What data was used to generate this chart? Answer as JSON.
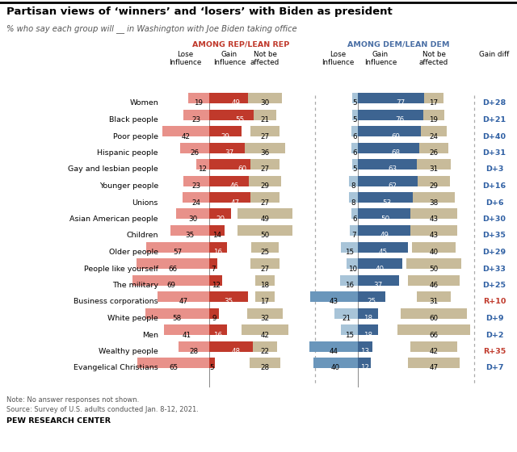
{
  "title": "Partisan views of ‘winners’ and ‘losers’ with Biden as president",
  "subtitle": "% who say each group will __ in Washington with Joe Biden taking office",
  "note": "Note: No answer responses not shown.",
  "source": "Source: Survey of U.S. adults conducted Jan. 8-12, 2021.",
  "credit": "PEW RESEARCH CENTER",
  "rep_label": "AMONG REP/LEAN REP",
  "dem_label": "AMONG DEM/LEAN DEM",
  "gain_diff_label": "Gain diff",
  "categories": [
    "Women",
    "Black people",
    "Poor people",
    "Hispanic people",
    "Gay and lesbian people",
    "Younger people",
    "Unions",
    "Asian American people",
    "Children",
    "Older people",
    "People like yourself",
    "The military",
    "Business corporations",
    "White people",
    "Men",
    "Wealthy people",
    "Evangelical Christians"
  ],
  "rep_lose": [
    19,
    23,
    42,
    26,
    12,
    23,
    24,
    30,
    35,
    57,
    66,
    69,
    47,
    58,
    41,
    28,
    65
  ],
  "rep_gain": [
    49,
    55,
    29,
    37,
    60,
    46,
    47,
    20,
    14,
    16,
    7,
    12,
    35,
    9,
    16,
    48,
    5
  ],
  "rep_notaff": [
    30,
    21,
    27,
    36,
    27,
    29,
    27,
    49,
    50,
    25,
    27,
    18,
    17,
    32,
    42,
    22,
    28
  ],
  "dem_lose": [
    5,
    5,
    6,
    6,
    5,
    8,
    8,
    6,
    7,
    15,
    10,
    16,
    43,
    21,
    15,
    44,
    40
  ],
  "dem_gain": [
    77,
    76,
    69,
    68,
    63,
    62,
    53,
    50,
    49,
    45,
    40,
    37,
    25,
    18,
    18,
    13,
    12
  ],
  "dem_notaff": [
    17,
    19,
    24,
    26,
    31,
    29,
    38,
    43,
    43,
    40,
    50,
    46,
    31,
    60,
    66,
    42,
    47
  ],
  "gain_diff": [
    "D+28",
    "D+21",
    "D+40",
    "D+31",
    "D+3",
    "D+16",
    "D+6",
    "D+30",
    "D+35",
    "D+29",
    "D+33",
    "D+25",
    "R+10",
    "D+9",
    "D+2",
    "R+35",
    "D+7"
  ],
  "rep_lose_color": "#e8918a",
  "rep_gain_color": "#c0392b",
  "rep_notaff_color": "#c8bb9a",
  "dem_lose_color_light": "#a8c4d8",
  "dem_lose_color_dark": "#6a96bb",
  "dem_gain_color": "#3d6491",
  "dem_notaff_color": "#c8bb9a",
  "gain_diff_blue": "#2e5fa3",
  "gain_diff_red": "#c0392b",
  "rep_color": "#c0392b",
  "dem_color": "#4a6fa5",
  "title_color": "#000000",
  "subtitle_color": "#555555"
}
